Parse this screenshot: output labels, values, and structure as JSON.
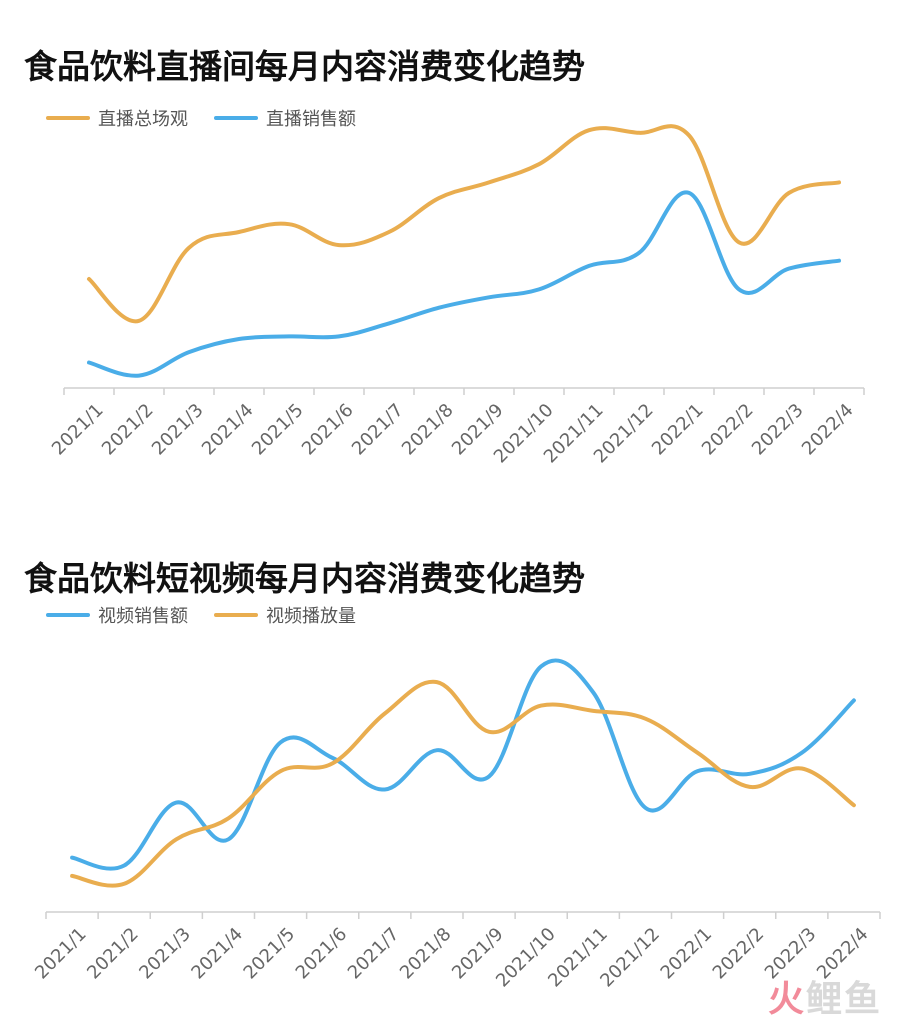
{
  "colors": {
    "orange": "#E9AD4F",
    "blue": "#4AADE8",
    "axis": "#cfcfcf",
    "tick_text": "#666666"
  },
  "watermark": {
    "accent": "火",
    "rest": "鲤鱼"
  },
  "chart_data": [
    {
      "type": "line",
      "title": "食品饮料直播间每月内容消费变化趋势",
      "categories": [
        "2021/1",
        "2021/2",
        "2021/3",
        "2021/4",
        "2021/5",
        "2021/6",
        "2021/7",
        "2021/8",
        "2021/9",
        "2021/10",
        "2021/11",
        "2021/12",
        "2022/1",
        "2022/2",
        "2022/3",
        "2022/4"
      ],
      "ylim": [
        0,
        100
      ],
      "grid": false,
      "legend": "top-left",
      "series": [
        {
          "name": "直播总场观",
          "color": "#E9AD4F",
          "values": [
            41,
            25,
            53,
            59,
            62,
            54,
            59,
            72,
            78,
            85,
            98,
            97,
            96,
            55,
            74,
            78
          ]
        },
        {
          "name": "直播销售额",
          "color": "#4AADE8",
          "values": [
            9,
            4,
            13,
            18,
            19,
            19,
            24,
            30,
            34,
            37,
            46,
            51,
            74,
            37,
            45,
            48
          ]
        }
      ]
    },
    {
      "type": "line",
      "title": "食品饮料短视频每月内容消费变化趋势",
      "categories": [
        "2021/1",
        "2021/2",
        "2021/3",
        "2021/4",
        "2021/5",
        "2021/6",
        "2021/7",
        "2021/8",
        "2021/9",
        "2021/10",
        "2021/11",
        "2021/12",
        "2022/1",
        "2022/2",
        "2022/3",
        "2022/4"
      ],
      "ylim": [
        0,
        100
      ],
      "grid": false,
      "legend": "top-left",
      "series": [
        {
          "name": "视频销售额",
          "color": "#4AADE8",
          "values": [
            20,
            17,
            41,
            27,
            64,
            58,
            46,
            61,
            51,
            93,
            83,
            39,
            53,
            52,
            60,
            80
          ]
        },
        {
          "name": "视频播放量",
          "color": "#E9AD4F",
          "values": [
            13,
            10,
            27,
            35,
            53,
            56,
            75,
            87,
            68,
            78,
            76,
            73,
            60,
            47,
            54,
            40
          ]
        }
      ]
    }
  ]
}
